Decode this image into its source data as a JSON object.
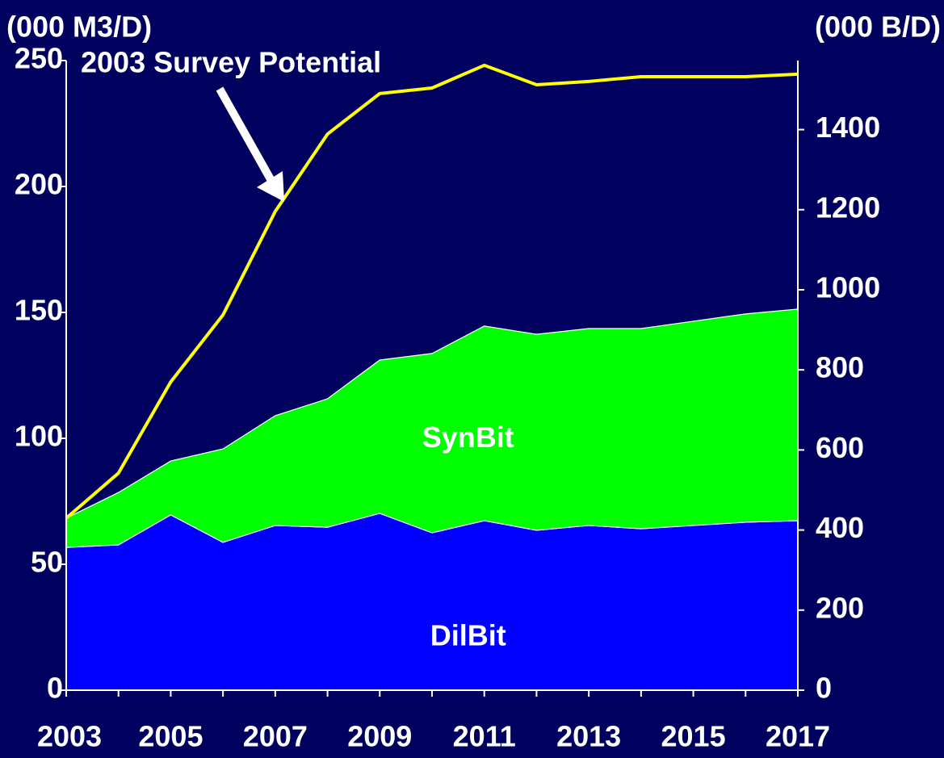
{
  "chart_data": {
    "type": "stacked-area",
    "y_label": "(000 M3/D)",
    "y2_label": "(000 B/D)",
    "x": [
      2003,
      2004,
      2005,
      2006,
      2007,
      2008,
      2009,
      2010,
      2011,
      2012,
      2013,
      2014,
      2015,
      2016,
      2017
    ],
    "xlim": [
      2003,
      2017
    ],
    "xticks": [
      2003,
      2005,
      2007,
      2009,
      2011,
      2013,
      2015,
      2017
    ],
    "ylim": [
      0,
      250
    ],
    "yticks": [
      0,
      50,
      100,
      150,
      200,
      250
    ],
    "y2lim": [
      0,
      1572.5
    ],
    "y2ticks": [
      0,
      200,
      400,
      600,
      800,
      1000,
      1200,
      1400
    ],
    "series": [
      {
        "name": "DilBit",
        "color": "#0000ff",
        "values": [
          56.7,
          57.7,
          69.6,
          58.7,
          65.4,
          64.7,
          70.2,
          62.5,
          67.3,
          63.5,
          65.4,
          64.1,
          65.4,
          66.7,
          67.3
        ]
      },
      {
        "name": "SynBit",
        "color": "#00ff00",
        "values": [
          11.6,
          20.8,
          21.4,
          37.1,
          43.6,
          51.0,
          60.9,
          71.2,
          77.3,
          77.8,
          78.2,
          79.5,
          81.1,
          82.7,
          84.0
        ]
      },
      {
        "name": "2003 Survey Potential",
        "type": "line",
        "color": "#ffff00",
        "values": [
          68.3,
          86.2,
          122.4,
          149.0,
          190.1,
          220.8,
          236.9,
          239.1,
          248.1,
          240.4,
          241.7,
          243.6,
          243.6,
          243.6,
          244.6
        ]
      }
    ]
  }
}
